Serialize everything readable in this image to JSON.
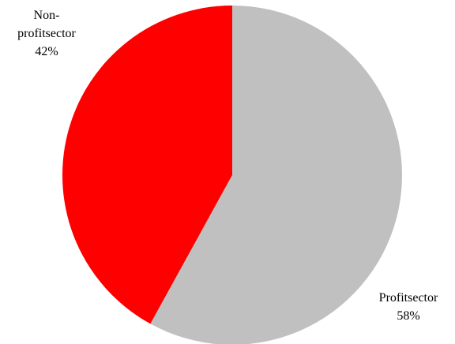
{
  "chart_data": {
    "type": "pie",
    "title": "",
    "start_angle_deg": 0,
    "direction": "counterclockwise",
    "slices": [
      {
        "name": "Non-profitsector",
        "label_lines": [
          "Non-",
          "profitsector"
        ],
        "value": 42,
        "value_label": "42%",
        "color": "#ff0000"
      },
      {
        "name": "Profitsector",
        "label_lines": [
          "Profitsector"
        ],
        "value": 58,
        "value_label": "58%",
        "color": "#c0c0c0"
      }
    ],
    "legend": "none"
  }
}
